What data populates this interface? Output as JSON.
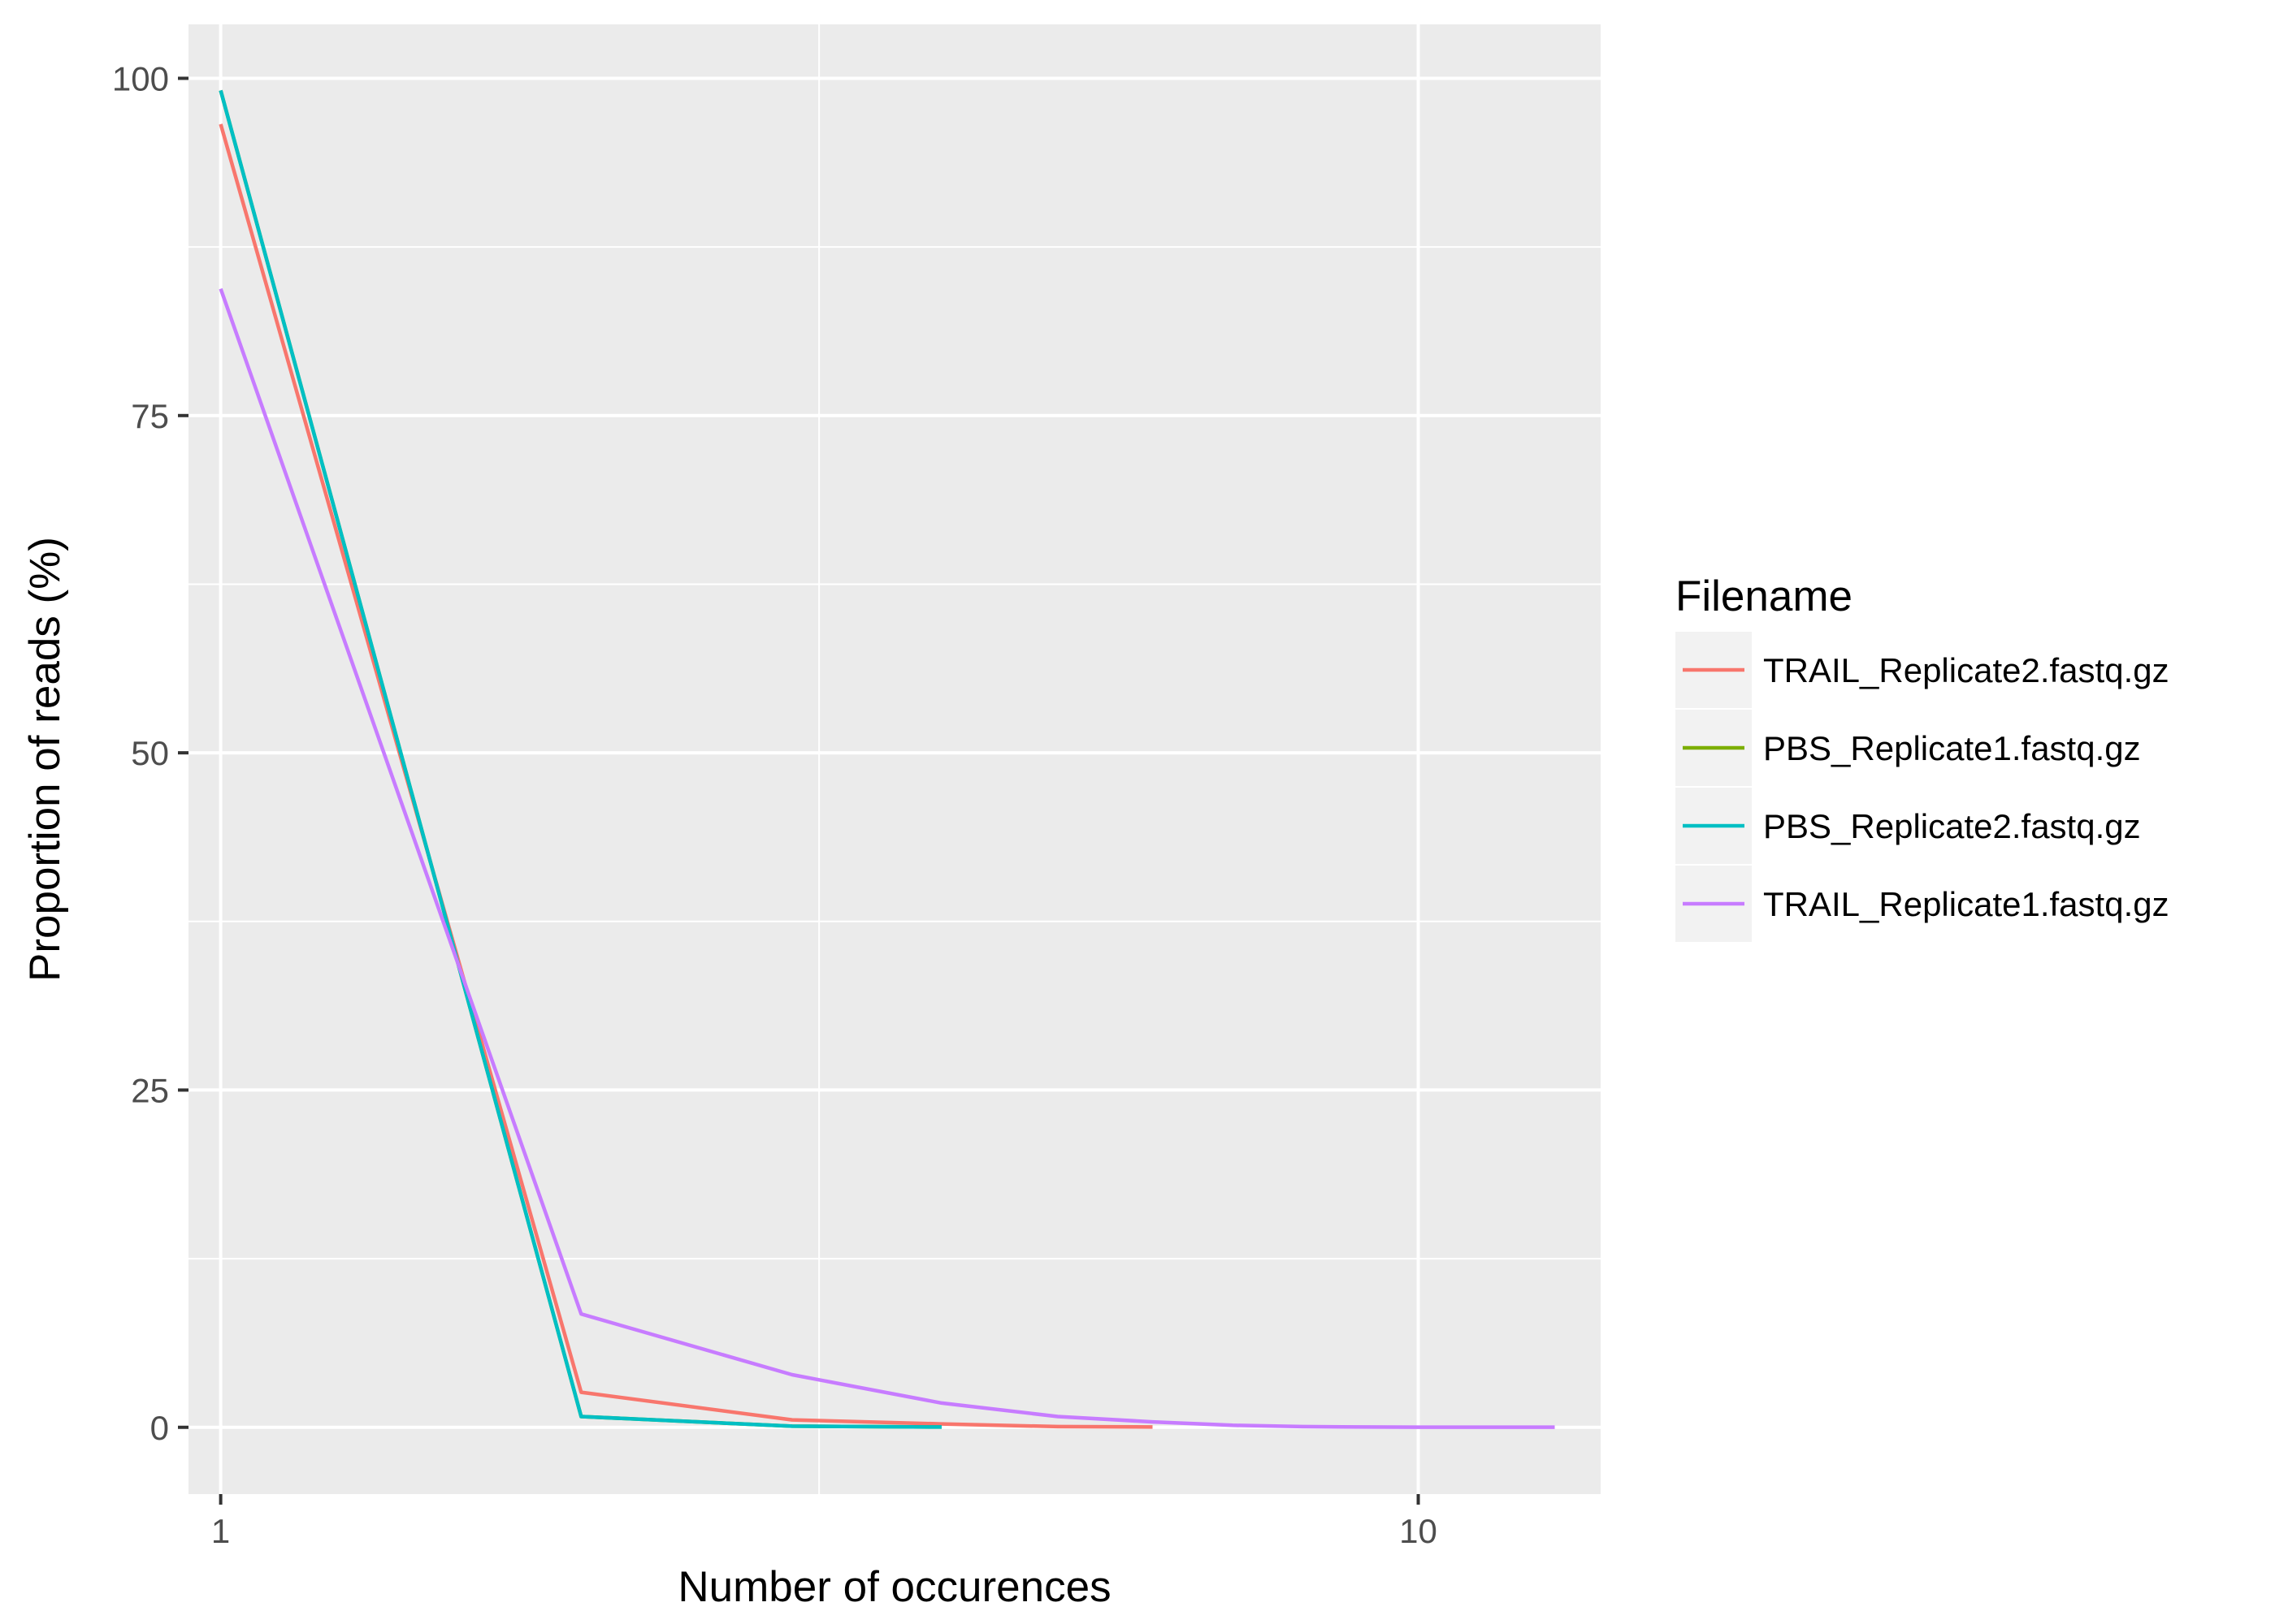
{
  "chart_data": {
    "type": "line",
    "title": "",
    "xlabel": "Number of occurences",
    "ylabel": "Proportion of reads (%)",
    "x_scale": "log10",
    "xlim": [
      0.94,
      14.2
    ],
    "ylim": [
      -4.95,
      104
    ],
    "x_ticks": [
      {
        "value": 1,
        "label": "1"
      },
      {
        "value": 10,
        "label": "10"
      }
    ],
    "x_minor_gridlines": [
      3.16
    ],
    "y_ticks": [
      {
        "value": 0,
        "label": "0"
      },
      {
        "value": 25,
        "label": "25"
      },
      {
        "value": 50,
        "label": "50"
      },
      {
        "value": 75,
        "label": "75"
      },
      {
        "value": 100,
        "label": "100"
      }
    ],
    "y_minor_gridlines": [
      12.5,
      37.5,
      62.5,
      87.5
    ],
    "legend": {
      "title": "Filename",
      "position": "right"
    },
    "grid": true,
    "series": [
      {
        "name": "TRAIL_Replicate2.fastq.gz",
        "color": "#F8766D",
        "x": [
          1,
          2,
          3,
          4,
          5,
          6
        ],
        "y": [
          96.6,
          2.6,
          0.55,
          0.25,
          0.05,
          0.02
        ]
      },
      {
        "name": "PBS_Replicate1.fastq.gz",
        "color": "#7CAE00",
        "x": [
          1,
          2,
          3,
          4
        ],
        "y": [
          99.1,
          0.8,
          0.08,
          0.02
        ]
      },
      {
        "name": "PBS_Replicate2.fastq.gz",
        "color": "#00BFC4",
        "x": [
          1,
          2,
          3,
          4
        ],
        "y": [
          99.1,
          0.8,
          0.08,
          0.02
        ]
      },
      {
        "name": "TRAIL_Replicate1.fastq.gz",
        "color": "#C77CFF",
        "x": [
          1,
          2,
          3,
          4,
          5,
          6,
          7,
          8,
          9,
          10,
          11,
          12,
          13
        ],
        "y": [
          84.4,
          8.4,
          3.9,
          1.8,
          0.8,
          0.4,
          0.15,
          0.05,
          0.02,
          0.01,
          0.01,
          0.01,
          0.01
        ]
      }
    ]
  }
}
